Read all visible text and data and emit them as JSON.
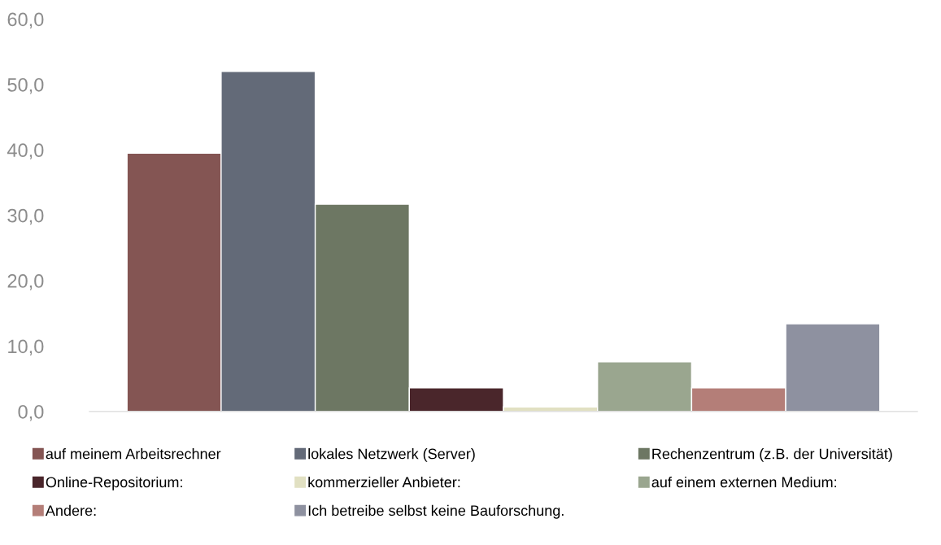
{
  "chart_data": {
    "type": "bar",
    "categories": [
      null
    ],
    "series": [
      {
        "name": "auf meinem Arbeitsrechner",
        "color": "#845553",
        "values": [
          39.5
        ]
      },
      {
        "name": "lokales Netzwerk (Server)",
        "color": "#636a78",
        "values": [
          52.0
        ]
      },
      {
        "name": "Rechenzentrum (z.B. der Universität)",
        "color": "#6d7763",
        "values": [
          31.7
        ]
      },
      {
        "name": "Online-Repositorium:",
        "color": "#4a262b",
        "values": [
          3.6
        ]
      },
      {
        "name": "kommerzieller Anbieter:",
        "color": "#e1e0c2",
        "values": [
          0.7
        ]
      },
      {
        "name": "auf einem externen Medium:",
        "color": "#9aa68f",
        "values": [
          7.6
        ]
      },
      {
        "name": "Andere:",
        "color": "#b47e78",
        "values": [
          3.6
        ]
      },
      {
        "name": "Ich betreibe selbst keine Bauforschung.",
        "color": "#8e91a0",
        "values": [
          13.4
        ]
      }
    ],
    "ylim": [
      0,
      60
    ],
    "yticks": [
      {
        "value": 0,
        "label": "0,0"
      },
      {
        "value": 10,
        "label": "10,0"
      },
      {
        "value": 20,
        "label": "20,0"
      },
      {
        "value": 30,
        "label": "30,0"
      },
      {
        "value": 40,
        "label": "40,0"
      },
      {
        "value": 50,
        "label": "50,0"
      },
      {
        "value": 60,
        "label": "60,0"
      }
    ],
    "grid": false,
    "legend": "bottom"
  }
}
